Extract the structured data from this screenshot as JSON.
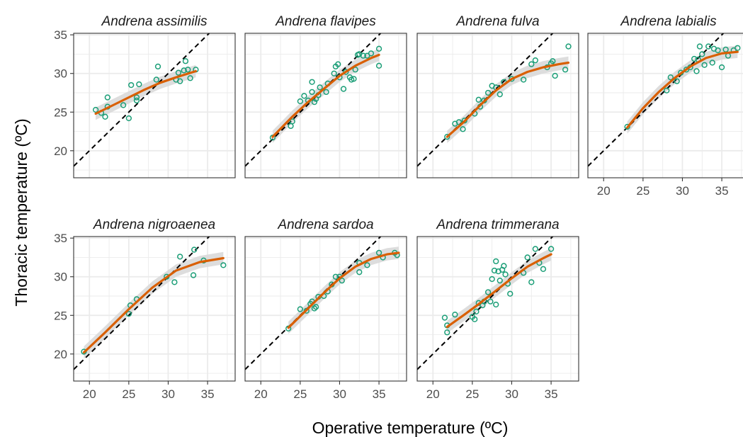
{
  "chart_data": {
    "type": "scatter",
    "xlabel": "Operative temperature (ºC)",
    "ylabel": "Thoracic temperature (ºC)",
    "xlim": [
      18,
      38.5
    ],
    "ylim": [
      16.5,
      35.2
    ],
    "xticks": [
      20,
      25,
      30,
      35
    ],
    "yticks": [
      20,
      25,
      30,
      35
    ],
    "grid": true,
    "reference_line": "1:1 dashed",
    "colors": {
      "points": "#1b9e77",
      "smooth": "#d95f02",
      "ribbon": "#d9d9d9",
      "reference": "#000000",
      "grid": "#ebebeb"
    },
    "facets": [
      {
        "title": "Andrena assimilis",
        "points": [
          [
            20.8,
            25.3
          ],
          [
            21.5,
            24.9
          ],
          [
            22.0,
            24.4
          ],
          [
            22.3,
            25.7
          ],
          [
            22.3,
            26.9
          ],
          [
            24.3,
            25.9
          ],
          [
            25.0,
            24.2
          ],
          [
            25.3,
            28.5
          ],
          [
            26.0,
            26.5
          ],
          [
            26.0,
            26.9
          ],
          [
            26.3,
            28.6
          ],
          [
            28.5,
            29.2
          ],
          [
            28.7,
            30.9
          ],
          [
            31.0,
            29.2
          ],
          [
            31.3,
            30.1
          ],
          [
            31.5,
            29.0
          ],
          [
            32.0,
            30.4
          ],
          [
            32.2,
            31.6
          ],
          [
            32.5,
            30.5
          ],
          [
            32.8,
            29.4
          ],
          [
            33.5,
            30.5
          ]
        ],
        "smooth": [
          [
            20.8,
            24.8
          ],
          [
            23,
            25.9
          ],
          [
            25,
            26.9
          ],
          [
            27,
            27.9
          ],
          [
            29,
            28.8
          ],
          [
            31,
            29.5
          ],
          [
            33.5,
            30.3
          ]
        ]
      },
      {
        "title": "Andrena flavipes",
        "points": [
          [
            21.5,
            21.7
          ],
          [
            23.8,
            23.2
          ],
          [
            24.0,
            23.8
          ],
          [
            25.0,
            26.4
          ],
          [
            25.5,
            27.1
          ],
          [
            26.0,
            26.5
          ],
          [
            26.5,
            27.6
          ],
          [
            26.5,
            28.9
          ],
          [
            26.8,
            26.3
          ],
          [
            27.0,
            26.7
          ],
          [
            27.3,
            27.2
          ],
          [
            27.5,
            28.2
          ],
          [
            28.3,
            27.6
          ],
          [
            28.5,
            28.7
          ],
          [
            29.3,
            30.0
          ],
          [
            29.5,
            30.9
          ],
          [
            29.8,
            31.2
          ],
          [
            30.5,
            28.0
          ],
          [
            30.8,
            30.2
          ],
          [
            31.3,
            29.5
          ],
          [
            31.5,
            29.2
          ],
          [
            31.8,
            29.3
          ],
          [
            32.0,
            30.5
          ],
          [
            32.3,
            32.4
          ],
          [
            32.5,
            32.5
          ],
          [
            33.0,
            32.3
          ],
          [
            33.5,
            32.3
          ],
          [
            34.0,
            32.6
          ],
          [
            35.0,
            33.2
          ],
          [
            35.0,
            31.0
          ],
          [
            30.0,
            29.5
          ]
        ],
        "smooth": [
          [
            21.5,
            21.8
          ],
          [
            24,
            24.4
          ],
          [
            26,
            26.3
          ],
          [
            28,
            28.0
          ],
          [
            30,
            29.7
          ],
          [
            32,
            31.0
          ],
          [
            34,
            32.0
          ],
          [
            35,
            32.4
          ]
        ]
      },
      {
        "title": "Andrena fulva",
        "points": [
          [
            21.8,
            21.8
          ],
          [
            22.8,
            23.5
          ],
          [
            23.3,
            23.7
          ],
          [
            23.8,
            22.8
          ],
          [
            24.0,
            23.9
          ],
          [
            25.3,
            24.8
          ],
          [
            25.8,
            26.6
          ],
          [
            26.0,
            25.7
          ],
          [
            26.5,
            26.5
          ],
          [
            27.0,
            27.5
          ],
          [
            27.5,
            28.4
          ],
          [
            28.0,
            28.2
          ],
          [
            28.5,
            27.3
          ],
          [
            29.0,
            28.9
          ],
          [
            30.0,
            29.3
          ],
          [
            31.5,
            29.2
          ],
          [
            32.5,
            31.2
          ],
          [
            33.0,
            31.7
          ],
          [
            34.5,
            30.8
          ],
          [
            35.0,
            31.3
          ],
          [
            35.2,
            31.6
          ],
          [
            35.5,
            29.7
          ],
          [
            36.8,
            30.5
          ],
          [
            37.2,
            33.5
          ]
        ],
        "smooth": [
          [
            21.8,
            21.8
          ],
          [
            24,
            23.8
          ],
          [
            26,
            25.9
          ],
          [
            28,
            27.8
          ],
          [
            30,
            29.3
          ],
          [
            32,
            30.2
          ],
          [
            34,
            30.8
          ],
          [
            36,
            31.2
          ],
          [
            37.2,
            31.4
          ]
        ]
      },
      {
        "title": "Andrena labialis",
        "points": [
          [
            23.0,
            23.1
          ],
          [
            28.0,
            27.8
          ],
          [
            28.5,
            29.5
          ],
          [
            29.3,
            29.0
          ],
          [
            29.8,
            30.1
          ],
          [
            30.5,
            30.5
          ],
          [
            31.0,
            30.8
          ],
          [
            31.5,
            31.9
          ],
          [
            31.8,
            30.3
          ],
          [
            32.0,
            31.8
          ],
          [
            32.5,
            32.5
          ],
          [
            32.8,
            31.1
          ],
          [
            33.3,
            33.5
          ],
          [
            33.8,
            31.4
          ],
          [
            34.0,
            33.2
          ],
          [
            34.5,
            33.0
          ],
          [
            35.0,
            30.8
          ],
          [
            35.5,
            33.1
          ],
          [
            35.8,
            32.3
          ],
          [
            36.5,
            33.0
          ],
          [
            37.0,
            33.3
          ],
          [
            32.2,
            33.5
          ]
        ],
        "smooth": [
          [
            23,
            23.0
          ],
          [
            25,
            25.5
          ],
          [
            27,
            27.6
          ],
          [
            29,
            29.4
          ],
          [
            31,
            30.9
          ],
          [
            33,
            32.0
          ],
          [
            35,
            32.6
          ],
          [
            37,
            32.8
          ]
        ]
      },
      {
        "title": "Andrena nigroaenea",
        "points": [
          [
            19.3,
            20.3
          ],
          [
            25.0,
            25.2
          ],
          [
            25.2,
            26.3
          ],
          [
            26.0,
            27.1
          ],
          [
            29.8,
            30.0
          ],
          [
            30.8,
            29.3
          ],
          [
            31.5,
            32.6
          ],
          [
            33.2,
            30.2
          ],
          [
            33.3,
            33.5
          ],
          [
            34.5,
            32.1
          ],
          [
            37.0,
            31.5
          ]
        ],
        "smooth": [
          [
            19.3,
            20.2
          ],
          [
            22,
            22.8
          ],
          [
            25,
            25.8
          ],
          [
            28,
            28.6
          ],
          [
            31,
            30.8
          ],
          [
            34,
            31.9
          ],
          [
            37,
            32.4
          ]
        ]
      },
      {
        "title": "Andrena sardoa",
        "points": [
          [
            23.5,
            23.3
          ],
          [
            25.0,
            25.8
          ],
          [
            25.8,
            25.6
          ],
          [
            26.3,
            26.5
          ],
          [
            26.5,
            26.8
          ],
          [
            26.8,
            25.9
          ],
          [
            27.0,
            26.1
          ],
          [
            27.3,
            27.4
          ],
          [
            28.0,
            27.5
          ],
          [
            28.5,
            28.1
          ],
          [
            29.0,
            29.0
          ],
          [
            29.5,
            30.0
          ],
          [
            30.0,
            30.0
          ],
          [
            30.3,
            29.5
          ],
          [
            32.5,
            31.8
          ],
          [
            32.5,
            30.6
          ],
          [
            33.5,
            31.5
          ],
          [
            35.0,
            33.1
          ],
          [
            35.5,
            32.5
          ],
          [
            37.0,
            33.1
          ],
          [
            37.3,
            32.8
          ]
        ],
        "smooth": [
          [
            23.5,
            23.4
          ],
          [
            26,
            25.9
          ],
          [
            28,
            27.9
          ],
          [
            30,
            29.8
          ],
          [
            32,
            31.3
          ],
          [
            34,
            32.3
          ],
          [
            36,
            32.9
          ],
          [
            37.5,
            33.1
          ]
        ]
      },
      {
        "title": "Andrena trimmerana",
        "points": [
          [
            21.5,
            24.7
          ],
          [
            21.8,
            23.7
          ],
          [
            21.8,
            22.8
          ],
          [
            22.8,
            25.1
          ],
          [
            25.0,
            24.8
          ],
          [
            25.3,
            24.5
          ],
          [
            25.5,
            25.5
          ],
          [
            25.8,
            26.6
          ],
          [
            26.3,
            26.3
          ],
          [
            26.5,
            26.8
          ],
          [
            27.0,
            28.0
          ],
          [
            27.3,
            26.8
          ],
          [
            27.5,
            29.7
          ],
          [
            27.8,
            30.8
          ],
          [
            28.0,
            32.0
          ],
          [
            28.0,
            26.4
          ],
          [
            28.3,
            30.7
          ],
          [
            28.5,
            29.5
          ],
          [
            28.8,
            30.9
          ],
          [
            29.0,
            31.4
          ],
          [
            29.2,
            30.3
          ],
          [
            29.5,
            29.1
          ],
          [
            29.8,
            27.8
          ],
          [
            31.5,
            30.5
          ],
          [
            32.0,
            32.5
          ],
          [
            32.5,
            29.3
          ],
          [
            33.0,
            33.6
          ],
          [
            33.5,
            31.8
          ],
          [
            34.0,
            31.0
          ],
          [
            35.0,
            33.6
          ]
        ],
        "smooth": [
          [
            21.8,
            23.5
          ],
          [
            24,
            25.1
          ],
          [
            26,
            26.6
          ],
          [
            28,
            28.2
          ],
          [
            30,
            29.8
          ],
          [
            32,
            31.3
          ],
          [
            34,
            32.4
          ],
          [
            35,
            32.9
          ]
        ]
      }
    ]
  }
}
